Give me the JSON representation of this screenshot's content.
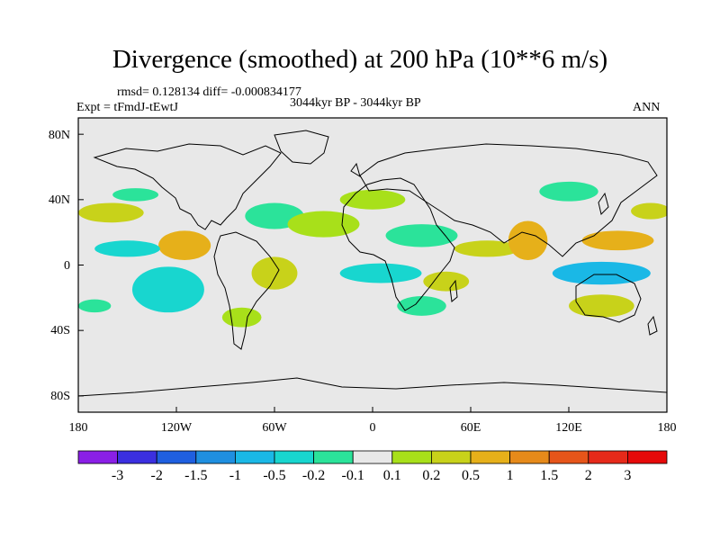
{
  "header": {
    "title": "Divergence (smoothed) at 200 hPa (10**6 m/s)",
    "stats": "rmsd= 0.128134 diff= -0.000834177",
    "period": "3044kyr BP - 3044kyr BP",
    "expt": "Expt = tFmdJ-tEwtJ",
    "season": "ANN"
  },
  "axes": {
    "lat_ticks": [
      "80N",
      "40N",
      "0",
      "40S",
      "80S"
    ],
    "lon_ticks": [
      "180",
      "120W",
      "60W",
      "0",
      "60E",
      "120E",
      "180"
    ]
  },
  "legend": {
    "labels": [
      "-3",
      "-2",
      "-1.5",
      "-1",
      "-0.5",
      "-0.2",
      "-0.1",
      "0.1",
      "0.2",
      "0.5",
      "1",
      "1.5",
      "2",
      "3"
    ],
    "colors": [
      "#8a1fe6",
      "#3b2fe0",
      "#1f5fe0",
      "#1f8fe0",
      "#1ab8e6",
      "#18d6cf",
      "#2be39a",
      "#e8e8e8",
      "#a8e01a",
      "#c8d21a",
      "#e6b01a",
      "#e68a1a",
      "#e6551a",
      "#e62a1a",
      "#e60a0a"
    ]
  },
  "map_data": {
    "projection": "cylindrical-equidistant",
    "lon_range": [
      -180,
      180
    ],
    "lat_range": [
      -90,
      90
    ],
    "features": [
      {
        "lon": -160,
        "lat": 32,
        "rx": 20,
        "ry": 6,
        "cls": 9
      },
      {
        "lon": -145,
        "lat": 43,
        "rx": 14,
        "ry": 4,
        "cls": 6
      },
      {
        "lon": -115,
        "lat": 12,
        "rx": 16,
        "ry": 9,
        "cls": 10
      },
      {
        "lon": -150,
        "lat": 10,
        "rx": 20,
        "ry": 5,
        "cls": 5
      },
      {
        "lon": -60,
        "lat": 30,
        "rx": 18,
        "ry": 8,
        "cls": 6
      },
      {
        "lon": -30,
        "lat": 25,
        "rx": 22,
        "ry": 8,
        "cls": 8
      },
      {
        "lon": 0,
        "lat": 40,
        "rx": 20,
        "ry": 6,
        "cls": 8
      },
      {
        "lon": -125,
        "lat": -15,
        "rx": 22,
        "ry": 14,
        "cls": 5
      },
      {
        "lon": -60,
        "lat": -5,
        "rx": 14,
        "ry": 10,
        "cls": 9
      },
      {
        "lon": 5,
        "lat": -5,
        "rx": 25,
        "ry": 6,
        "cls": 5
      },
      {
        "lon": 30,
        "lat": 18,
        "rx": 22,
        "ry": 7,
        "cls": 6
      },
      {
        "lon": 70,
        "lat": 10,
        "rx": 20,
        "ry": 5,
        "cls": 9
      },
      {
        "lon": 95,
        "lat": 15,
        "rx": 12,
        "ry": 12,
        "cls": 10
      },
      {
        "lon": 140,
        "lat": -5,
        "rx": 30,
        "ry": 7,
        "cls": 4
      },
      {
        "lon": 150,
        "lat": 15,
        "rx": 22,
        "ry": 6,
        "cls": 10
      },
      {
        "lon": 140,
        "lat": -25,
        "rx": 20,
        "ry": 7,
        "cls": 9
      },
      {
        "lon": 30,
        "lat": -25,
        "rx": 15,
        "ry": 6,
        "cls": 6
      },
      {
        "lon": -80,
        "lat": -32,
        "rx": 12,
        "ry": 6,
        "cls": 8
      },
      {
        "lon": -170,
        "lat": -25,
        "rx": 10,
        "ry": 4,
        "cls": 6
      },
      {
        "lon": 170,
        "lat": 33,
        "rx": 12,
        "ry": 5,
        "cls": 9
      },
      {
        "lon": 120,
        "lat": 45,
        "rx": 18,
        "ry": 6,
        "cls": 6
      },
      {
        "lon": 45,
        "lat": -10,
        "rx": 14,
        "ry": 6,
        "cls": 9
      }
    ]
  }
}
